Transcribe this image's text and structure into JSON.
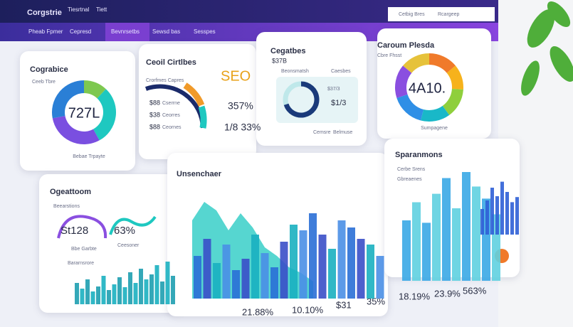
{
  "header": {
    "brand": "Corgstrie",
    "top_tabs": [
      "Tiesrtnal",
      "Tiett"
    ],
    "nav": [
      "Pheab Fpmer",
      "Cepresd",
      "Bevnrsetbs",
      "Sewsd bas",
      "Sesspes"
    ],
    "right_tabs": [
      "Cetbig Bres",
      "Rcargeep"
    ]
  },
  "card1": {
    "title": "Cograbice",
    "subtitle": "Ceeb Tbre",
    "center": "727L",
    "footer": "Bebae Trpayte",
    "segments": [
      {
        "value": 12,
        "color": "#7ec850"
      },
      {
        "value": 30,
        "color": "#1ec8c0"
      },
      {
        "value": 30,
        "color": "#7a4fe0"
      },
      {
        "value": 28,
        "color": "#2a7fd6"
      }
    ]
  },
  "card2": {
    "title": "Ceoil Cirtlbes",
    "label": "Crorfmes Capres",
    "badge": "SEO",
    "rows": [
      "$88",
      "$38",
      "$88"
    ],
    "row_texts": [
      "Cserrne",
      "Ceorres",
      "Ceornes"
    ],
    "stats": [
      "357%",
      "1/8 33%"
    ]
  },
  "card3": {
    "title": "Cegatbes",
    "value": "$37B",
    "legend": [
      "Beonsmatsh",
      "Caesbes"
    ],
    "rows": [
      "$37/3",
      "$1/3"
    ],
    "footer": [
      "Cemsre",
      "Belmuse"
    ],
    "fill": 70
  },
  "card4": {
    "title": "Caroum Plesda",
    "subtitle": "Cbre Fhsst",
    "center": "4A10.",
    "footer": "Sumpagene",
    "segments": [
      {
        "value": 14,
        "color": "#f07a2a"
      },
      {
        "value": 12,
        "color": "#f6b21c"
      },
      {
        "value": 14,
        "color": "#8fcf3c"
      },
      {
        "value": 14,
        "color": "#19b8c8"
      },
      {
        "value": 16,
        "color": "#2f8fe6"
      },
      {
        "value": 16,
        "color": "#8a4fe0"
      },
      {
        "value": 14,
        "color": "#e6c23a"
      }
    ]
  },
  "card5": {
    "title": "Ogeattoom",
    "subtitle": "Beearstions",
    "value": "St128",
    "pct": "63%",
    "notes": [
      "Bbe Garbte",
      "Ceesoner",
      "Bararnsrore"
    ],
    "bars": [
      30,
      22,
      35,
      18,
      25,
      40,
      20,
      28,
      38,
      24,
      45,
      30,
      50,
      35,
      42,
      55,
      32,
      60,
      40
    ]
  },
  "main": {
    "title": "Unsenchaer",
    "area": [
      55,
      68,
      62,
      48,
      60,
      50,
      36,
      30,
      22,
      18,
      12
    ],
    "bars": [
      30,
      42,
      25,
      38,
      20,
      28,
      45,
      32,
      22,
      40,
      52,
      48,
      60,
      45,
      35,
      55,
      50,
      42,
      38,
      30
    ],
    "stats": [
      "21.88%",
      "10.10%",
      "$31",
      "35%"
    ]
  },
  "side": {
    "title": "Sparanmons",
    "subs": [
      "Cerbe Srens",
      "Gbreaenes"
    ],
    "bars": [
      50,
      65,
      48,
      72,
      85,
      60,
      90,
      78,
      68,
      55
    ],
    "bars2": [
      30,
      40,
      55,
      45,
      62,
      50,
      38,
      44
    ],
    "stats": [
      "18.19%",
      "23.9%",
      "563%"
    ]
  }
}
